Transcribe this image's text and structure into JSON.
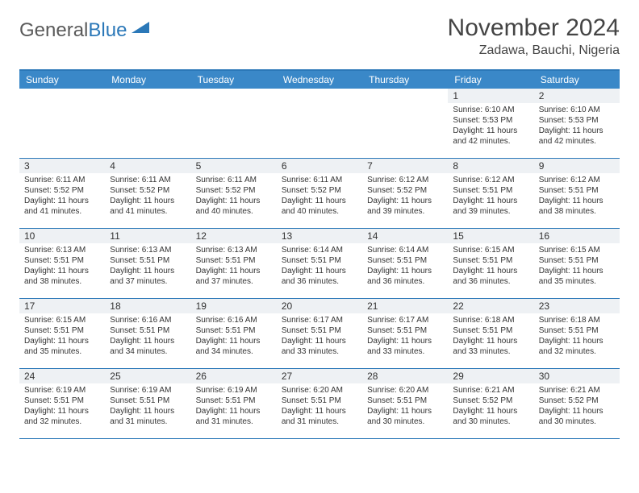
{
  "logo": {
    "text1": "General",
    "text2": "Blue"
  },
  "title": "November 2024",
  "location": "Zadawa, Bauchi, Nigeria",
  "colors": {
    "header_bg": "#3a88c8",
    "border": "#2b78b8",
    "daynum_bg": "#eef1f4",
    "text": "#333333",
    "logo_gray": "#5a5a5a",
    "logo_blue": "#2b78b8",
    "page_bg": "#ffffff"
  },
  "layout": {
    "columns": 7,
    "rows": 5,
    "cell_fontsize": 10,
    "header_fontsize": 12,
    "title_fontsize": 30,
    "location_fontsize": 16
  },
  "day_labels": [
    "Sunday",
    "Monday",
    "Tuesday",
    "Wednesday",
    "Thursday",
    "Friday",
    "Saturday"
  ],
  "weeks": [
    [
      {
        "n": "",
        "lines": []
      },
      {
        "n": "",
        "lines": []
      },
      {
        "n": "",
        "lines": []
      },
      {
        "n": "",
        "lines": []
      },
      {
        "n": "",
        "lines": []
      },
      {
        "n": "1",
        "lines": [
          "Sunrise: 6:10 AM",
          "Sunset: 5:53 PM",
          "Daylight: 11 hours and 42 minutes."
        ]
      },
      {
        "n": "2",
        "lines": [
          "Sunrise: 6:10 AM",
          "Sunset: 5:53 PM",
          "Daylight: 11 hours and 42 minutes."
        ]
      }
    ],
    [
      {
        "n": "3",
        "lines": [
          "Sunrise: 6:11 AM",
          "Sunset: 5:52 PM",
          "Daylight: 11 hours and 41 minutes."
        ]
      },
      {
        "n": "4",
        "lines": [
          "Sunrise: 6:11 AM",
          "Sunset: 5:52 PM",
          "Daylight: 11 hours and 41 minutes."
        ]
      },
      {
        "n": "5",
        "lines": [
          "Sunrise: 6:11 AM",
          "Sunset: 5:52 PM",
          "Daylight: 11 hours and 40 minutes."
        ]
      },
      {
        "n": "6",
        "lines": [
          "Sunrise: 6:11 AM",
          "Sunset: 5:52 PM",
          "Daylight: 11 hours and 40 minutes."
        ]
      },
      {
        "n": "7",
        "lines": [
          "Sunrise: 6:12 AM",
          "Sunset: 5:52 PM",
          "Daylight: 11 hours and 39 minutes."
        ]
      },
      {
        "n": "8",
        "lines": [
          "Sunrise: 6:12 AM",
          "Sunset: 5:51 PM",
          "Daylight: 11 hours and 39 minutes."
        ]
      },
      {
        "n": "9",
        "lines": [
          "Sunrise: 6:12 AM",
          "Sunset: 5:51 PM",
          "Daylight: 11 hours and 38 minutes."
        ]
      }
    ],
    [
      {
        "n": "10",
        "lines": [
          "Sunrise: 6:13 AM",
          "Sunset: 5:51 PM",
          "Daylight: 11 hours and 38 minutes."
        ]
      },
      {
        "n": "11",
        "lines": [
          "Sunrise: 6:13 AM",
          "Sunset: 5:51 PM",
          "Daylight: 11 hours and 37 minutes."
        ]
      },
      {
        "n": "12",
        "lines": [
          "Sunrise: 6:13 AM",
          "Sunset: 5:51 PM",
          "Daylight: 11 hours and 37 minutes."
        ]
      },
      {
        "n": "13",
        "lines": [
          "Sunrise: 6:14 AM",
          "Sunset: 5:51 PM",
          "Daylight: 11 hours and 36 minutes."
        ]
      },
      {
        "n": "14",
        "lines": [
          "Sunrise: 6:14 AM",
          "Sunset: 5:51 PM",
          "Daylight: 11 hours and 36 minutes."
        ]
      },
      {
        "n": "15",
        "lines": [
          "Sunrise: 6:15 AM",
          "Sunset: 5:51 PM",
          "Daylight: 11 hours and 36 minutes."
        ]
      },
      {
        "n": "16",
        "lines": [
          "Sunrise: 6:15 AM",
          "Sunset: 5:51 PM",
          "Daylight: 11 hours and 35 minutes."
        ]
      }
    ],
    [
      {
        "n": "17",
        "lines": [
          "Sunrise: 6:15 AM",
          "Sunset: 5:51 PM",
          "Daylight: 11 hours and 35 minutes."
        ]
      },
      {
        "n": "18",
        "lines": [
          "Sunrise: 6:16 AM",
          "Sunset: 5:51 PM",
          "Daylight: 11 hours and 34 minutes."
        ]
      },
      {
        "n": "19",
        "lines": [
          "Sunrise: 6:16 AM",
          "Sunset: 5:51 PM",
          "Daylight: 11 hours and 34 minutes."
        ]
      },
      {
        "n": "20",
        "lines": [
          "Sunrise: 6:17 AM",
          "Sunset: 5:51 PM",
          "Daylight: 11 hours and 33 minutes."
        ]
      },
      {
        "n": "21",
        "lines": [
          "Sunrise: 6:17 AM",
          "Sunset: 5:51 PM",
          "Daylight: 11 hours and 33 minutes."
        ]
      },
      {
        "n": "22",
        "lines": [
          "Sunrise: 6:18 AM",
          "Sunset: 5:51 PM",
          "Daylight: 11 hours and 33 minutes."
        ]
      },
      {
        "n": "23",
        "lines": [
          "Sunrise: 6:18 AM",
          "Sunset: 5:51 PM",
          "Daylight: 11 hours and 32 minutes."
        ]
      }
    ],
    [
      {
        "n": "24",
        "lines": [
          "Sunrise: 6:19 AM",
          "Sunset: 5:51 PM",
          "Daylight: 11 hours and 32 minutes."
        ]
      },
      {
        "n": "25",
        "lines": [
          "Sunrise: 6:19 AM",
          "Sunset: 5:51 PM",
          "Daylight: 11 hours and 31 minutes."
        ]
      },
      {
        "n": "26",
        "lines": [
          "Sunrise: 6:19 AM",
          "Sunset: 5:51 PM",
          "Daylight: 11 hours and 31 minutes."
        ]
      },
      {
        "n": "27",
        "lines": [
          "Sunrise: 6:20 AM",
          "Sunset: 5:51 PM",
          "Daylight: 11 hours and 31 minutes."
        ]
      },
      {
        "n": "28",
        "lines": [
          "Sunrise: 6:20 AM",
          "Sunset: 5:51 PM",
          "Daylight: 11 hours and 30 minutes."
        ]
      },
      {
        "n": "29",
        "lines": [
          "Sunrise: 6:21 AM",
          "Sunset: 5:52 PM",
          "Daylight: 11 hours and 30 minutes."
        ]
      },
      {
        "n": "30",
        "lines": [
          "Sunrise: 6:21 AM",
          "Sunset: 5:52 PM",
          "Daylight: 11 hours and 30 minutes."
        ]
      }
    ]
  ]
}
